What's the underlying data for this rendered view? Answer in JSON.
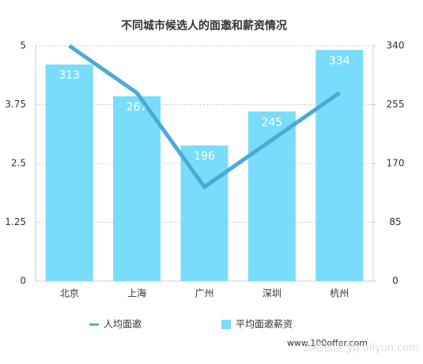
{
  "chart_data": {
    "type": "bar_line",
    "title": "不同城市候选人的面邀和薪资情况",
    "categories": [
      "北京",
      "上海",
      "广州",
      "深圳",
      "杭州"
    ],
    "series": [
      {
        "name": "人均面邀",
        "type": "line",
        "color": "#4ba9da",
        "values": [
          5.0,
          4.0,
          2.0,
          3.0,
          4.0
        ]
      },
      {
        "name": "平均面邀薪资",
        "type": "bar",
        "axis": "y2",
        "color": "#79dcfa",
        "values": [
          313,
          267,
          196,
          245,
          334
        ]
      }
    ],
    "ylim": [
      0,
      5
    ],
    "yticks": [
      0,
      1.25,
      2.5,
      3.75,
      5
    ],
    "y2lim": [
      0,
      340
    ],
    "y2ticks": [
      0,
      85,
      170,
      255,
      340
    ],
    "grid": true,
    "legend": "bottom",
    "watermark": "www.100offer.com",
    "watermark2": "云栖社区 yq.aliyun.com"
  }
}
